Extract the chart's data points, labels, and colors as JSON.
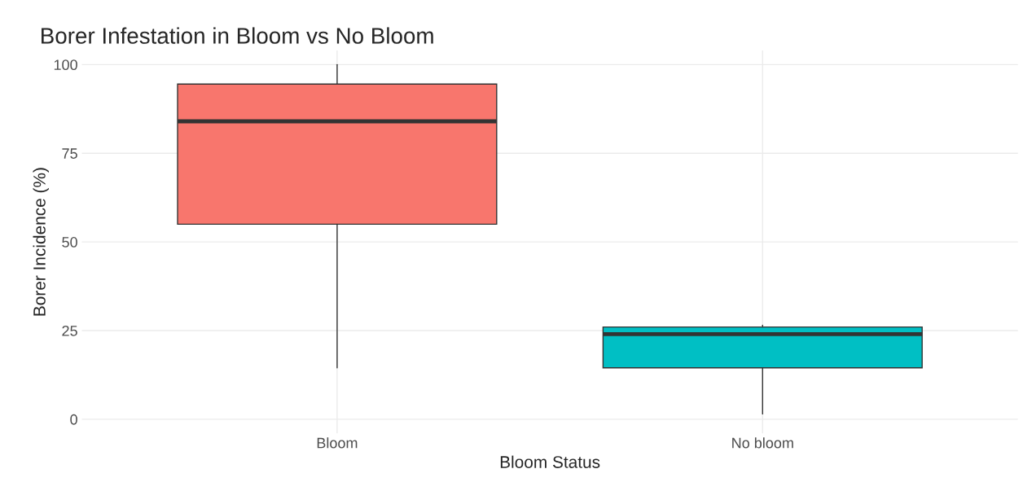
{
  "chart_data": {
    "type": "box",
    "title": "Borer Infestation in Bloom vs No Bloom",
    "xlabel": "Bloom Status",
    "ylabel": "Borer Incidence (%)",
    "categories": [
      "Bloom",
      "No bloom"
    ],
    "colors": [
      "#f8766d",
      "#00bfc4"
    ],
    "boxes": [
      {
        "low": 14.5,
        "q1": 55,
        "median": 84,
        "q3": 94.5,
        "high": 100
      },
      {
        "low": 1.5,
        "q1": 14.5,
        "median": 24,
        "q3": 26,
        "high": 26.5
      }
    ],
    "ylim": [
      -4,
      104
    ],
    "yticks": [
      0,
      25,
      50,
      75,
      100
    ],
    "grid": true,
    "legend": false
  }
}
